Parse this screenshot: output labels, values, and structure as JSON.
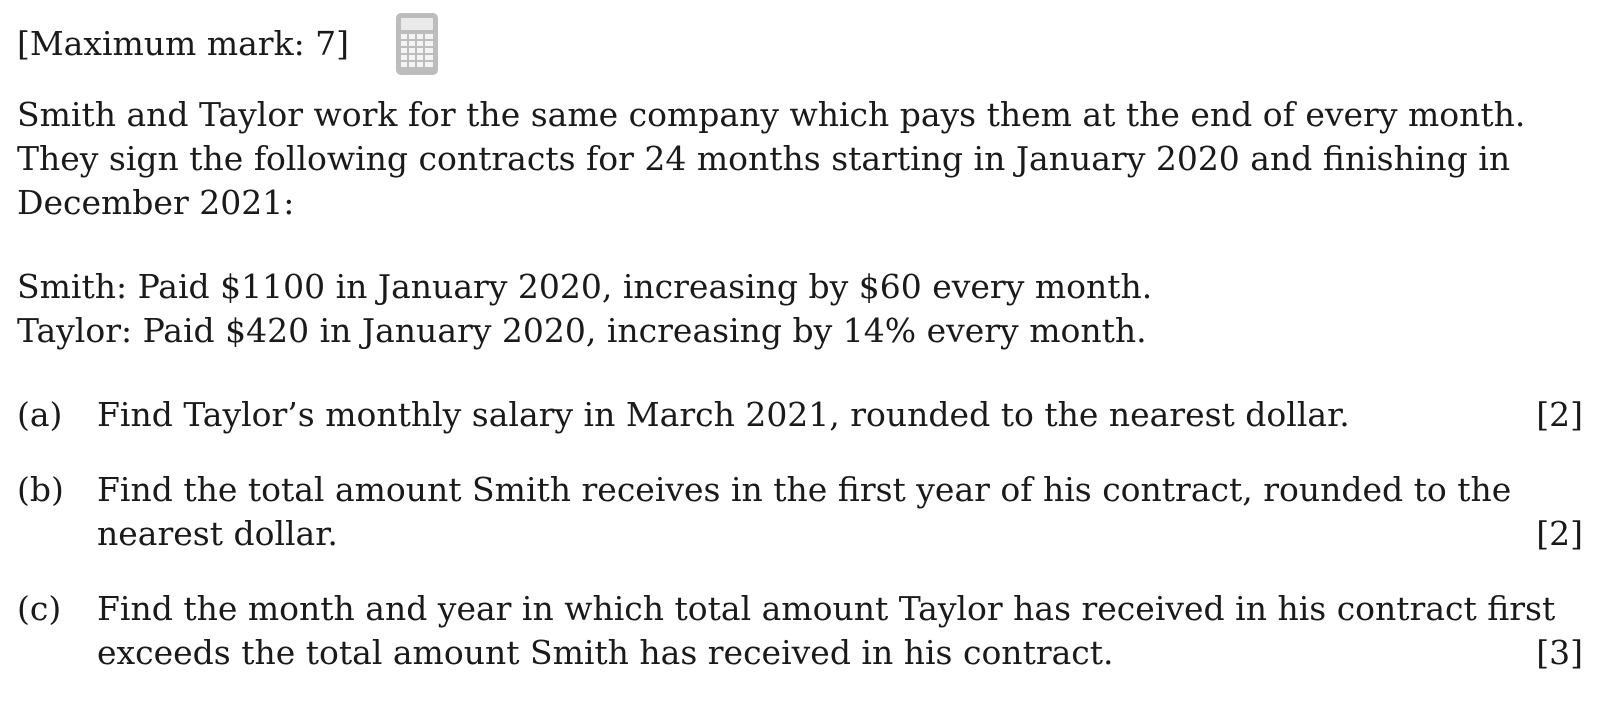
{
  "header": {
    "max_mark": "[Maximum mark: 7]",
    "icon": "calculator-icon"
  },
  "intro": {
    "line1": "Smith and Taylor work for the same company which pays them at the end of every month.",
    "line2": "They sign the following contracts for 24 months starting in January 2020 and finishing in",
    "line3": "December 2021:"
  },
  "contracts": {
    "smith": "Smith: Paid $1100 in January 2020, increasing by $60 every month.",
    "taylor": "Taylor: Paid $420 in January 2020, increasing by 14% every month."
  },
  "parts": [
    {
      "label": "(a)",
      "line1": "Find Taylor’s monthly salary in March 2021, rounded to the nearest dollar.",
      "marks": "[2]"
    },
    {
      "label": "(b)",
      "line1": "Find the total amount Smith receives in the first year of his contract, rounded to the",
      "line2": "nearest dollar.",
      "marks": "[2]"
    },
    {
      "label": "(c)",
      "line1": "Find the month and year in which total amount Taylor has received in his contract first",
      "line2": "exceeds the total amount Smith has received in his contract.",
      "marks": "[3]"
    }
  ],
  "colors": {
    "text": "#1a1a1a",
    "icon": "#b3b3b3"
  }
}
